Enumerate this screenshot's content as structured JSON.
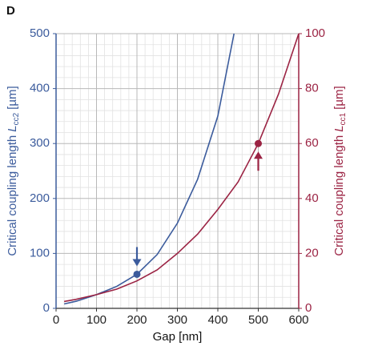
{
  "chart_data": {
    "type": "line",
    "panel_label": "D",
    "xlabel": "Gap [nm]",
    "ylabel": {
      "text": "Critical coupling length",
      "symbol": "L",
      "subscript": "cc2",
      "unit": "[µm]"
    },
    "y2label": {
      "text": "Critical coupling length",
      "symbol": "L",
      "subscript": "cc1",
      "unit": "[µm]"
    },
    "xlim": [
      0,
      600
    ],
    "xticks": [
      0,
      100,
      200,
      300,
      400,
      500,
      600
    ],
    "ylim": [
      0,
      500
    ],
    "yticks": [
      0,
      100,
      200,
      300,
      400,
      500
    ],
    "y2lim": [
      0,
      100
    ],
    "y2ticks": [
      0,
      20,
      40,
      60,
      80,
      100
    ],
    "grid": true,
    "minor_divisions": 5,
    "series": [
      {
        "name": "Lcc2",
        "color": "#3b5b9c",
        "axis": "y",
        "x": [
          20,
          50,
          100,
          150,
          200,
          250,
          300,
          350,
          400,
          440
        ],
        "values": [
          8,
          13,
          25,
          40,
          62,
          98,
          155,
          235,
          350,
          500
        ],
        "highlight": {
          "x": 200,
          "value": 62
        }
      },
      {
        "name": "Lcc1",
        "color": "#9b2343",
        "axis": "y2",
        "x": [
          20,
          50,
          100,
          150,
          200,
          250,
          300,
          350,
          400,
          450,
          500,
          550,
          600
        ],
        "values": [
          2.5,
          3.3,
          5,
          7,
          10,
          14,
          20,
          27,
          36,
          46,
          60,
          78,
          100
        ],
        "highlight": {
          "x": 500,
          "value": 60
        }
      }
    ]
  }
}
